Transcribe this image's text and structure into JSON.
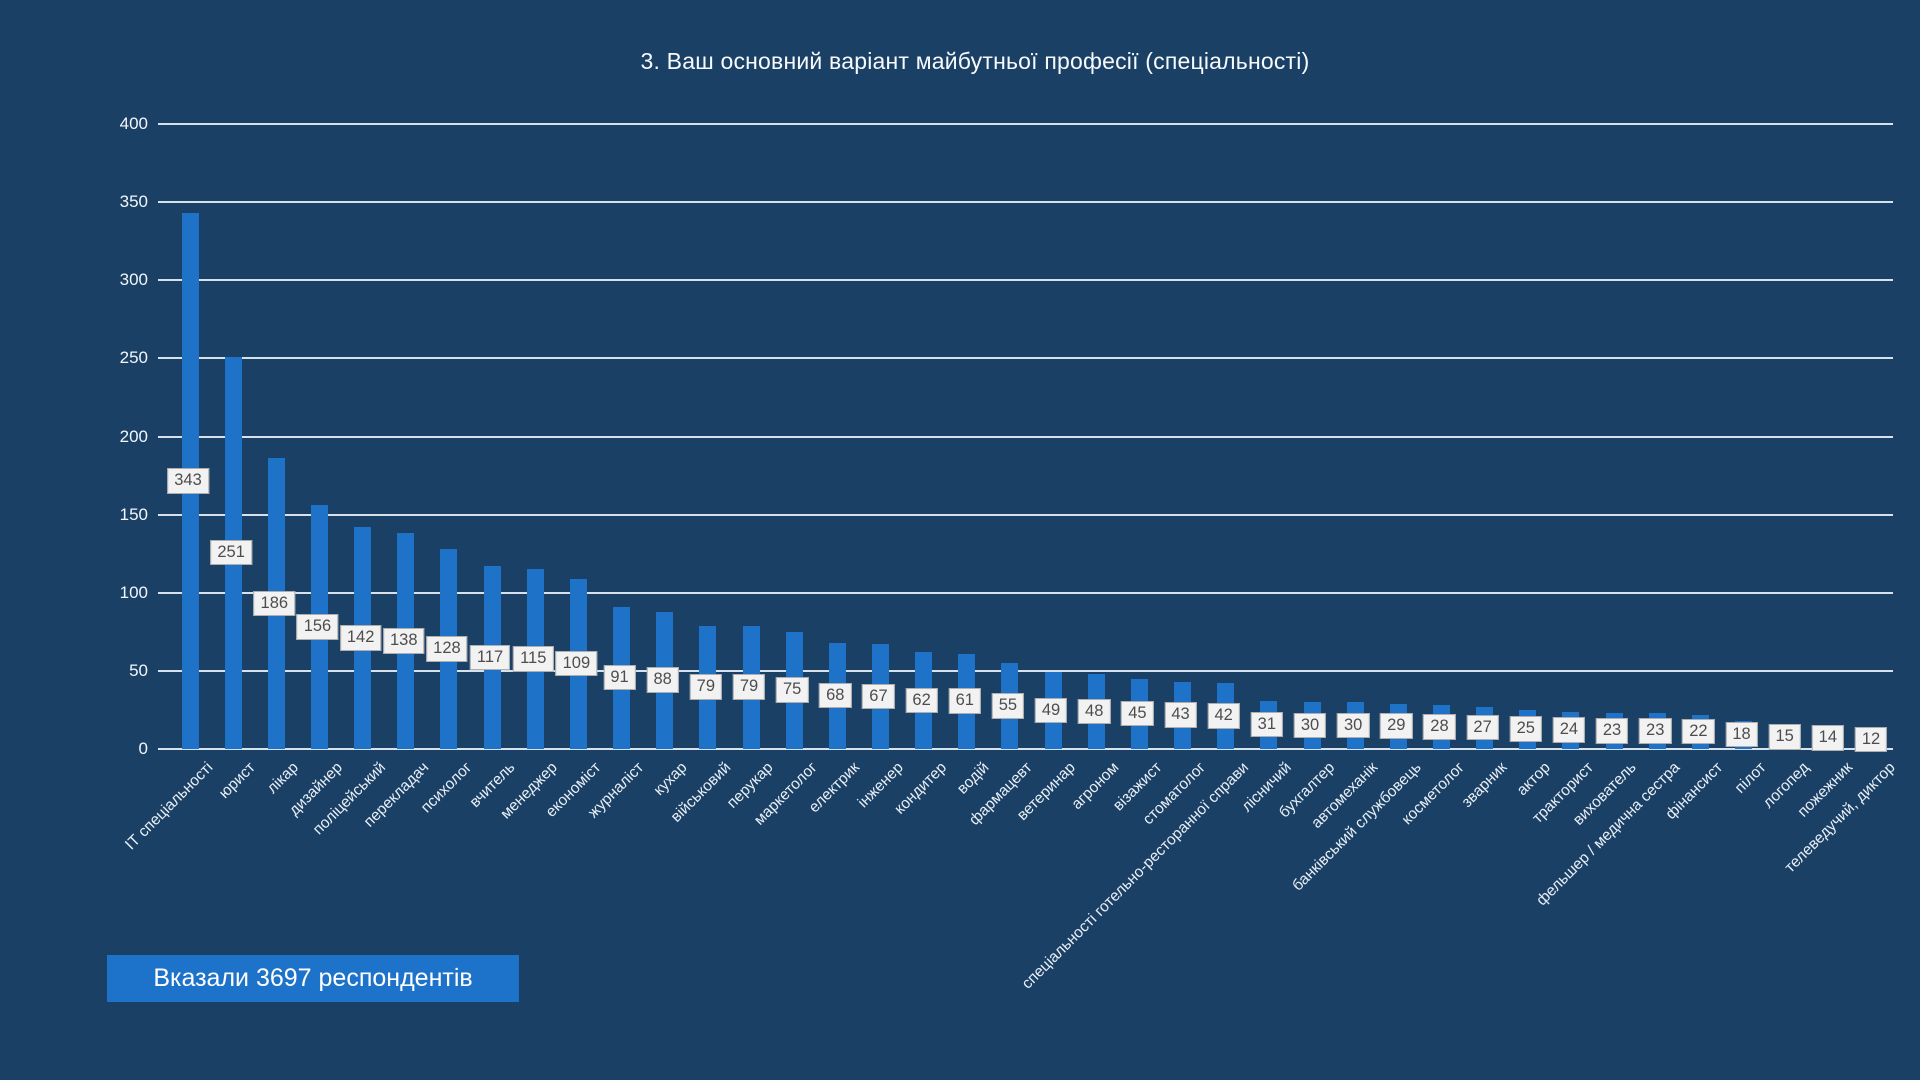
{
  "title": "3. Ваш основний варіант майбутньої професії (спеціальності)",
  "annotation_badge": "Вказали 3697 респондентів",
  "colors": {
    "background": "#1b4065",
    "bar": "#1e72c8",
    "gridline": "#e7eff6",
    "axis_text": "#f2f6fa",
    "value_box_bg": "#f2f2f2",
    "value_box_border": "#aeaeae",
    "value_box_text": "#4d4d4d",
    "badge_bg": "#1d73c9",
    "badge_text": "#ffffff",
    "category_text": "#e9eff6"
  },
  "chart_data": {
    "type": "bar",
    "title": "3. Ваш основний варіант майбутньої професії (спеціальності)",
    "xlabel": "",
    "ylabel": "",
    "ylim": [
      0,
      400
    ],
    "ytick_step": 50,
    "yticks": [
      0,
      50,
      100,
      150,
      200,
      250,
      300,
      350,
      400
    ],
    "grid": true,
    "legend": "none",
    "annotation": "Вказали 3697 респондентів",
    "categories": [
      "ІТ спеціальності",
      "юрист",
      "лікар",
      "дизайнер",
      "поліцейський",
      "перекладач",
      "психолог",
      "вчитель",
      "менеджер",
      "економіст",
      "журналіст",
      "кухар",
      "військовий",
      "перукар",
      "маркетолог",
      "електрик",
      "інженер",
      "кондитер",
      "водій",
      "фармацевт",
      "ветеринар",
      "агроном",
      "візажист",
      "стоматолог",
      "спеціальності готельно-ресторанної справи",
      "лісничий",
      "бухгалтер",
      "автомеханік",
      "банківський службовець",
      "косметолог",
      "зварник",
      "актор",
      "тракторист",
      "вихователь",
      "фельшер / медична сестра",
      "фінансист",
      "пілот",
      "логопед",
      "пожежник",
      "телеведучий, диктор"
    ],
    "values": [
      343,
      251,
      186,
      156,
      142,
      138,
      128,
      117,
      115,
      109,
      91,
      88,
      79,
      79,
      75,
      68,
      67,
      62,
      61,
      55,
      49,
      48,
      45,
      43,
      42,
      31,
      30,
      30,
      29,
      28,
      27,
      25,
      24,
      23,
      23,
      22,
      18,
      15,
      14,
      12
    ]
  }
}
